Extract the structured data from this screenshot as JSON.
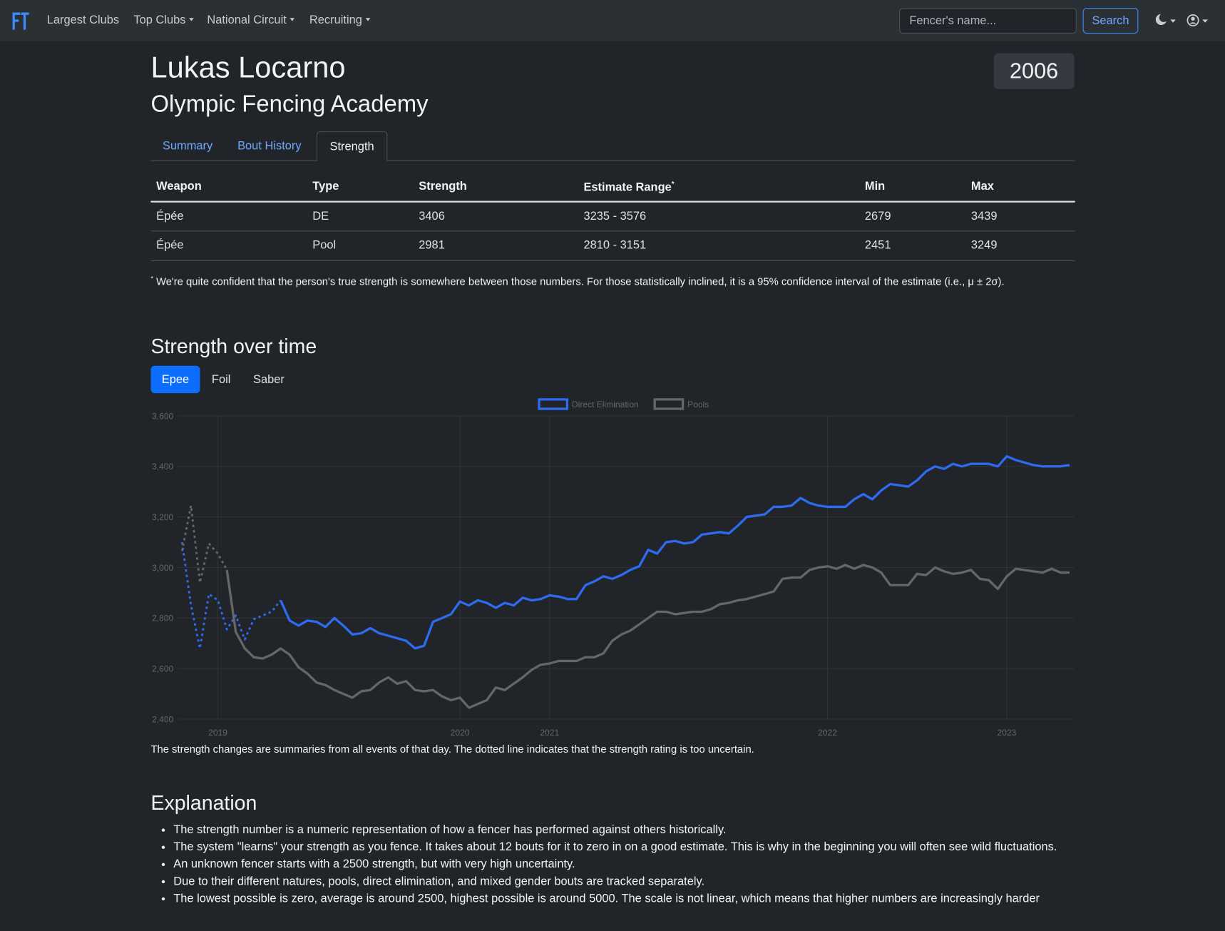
{
  "navbar": {
    "links": [
      "Largest Clubs",
      "Top Clubs",
      "National Circuit",
      "Recruiting"
    ],
    "search_placeholder": "Fencer's name...",
    "search_button": "Search"
  },
  "header": {
    "name": "Lukas Locarno",
    "club": "Olympic Fencing Academy",
    "year": 2006
  },
  "tabs": [
    "Summary",
    "Bout History",
    "Strength"
  ],
  "table": {
    "columns": [
      "Weapon",
      "Type",
      "Strength",
      "Estimate Range",
      "Min",
      "Max"
    ],
    "footnote_marker": "*",
    "rows": [
      [
        "Épée",
        "DE",
        3406,
        "3235 - 3576",
        2679,
        3439
      ],
      [
        "Épée",
        "Pool",
        2981,
        "2810 - 3151",
        2451,
        3249
      ]
    ],
    "footnote": "We're quite confident that the person's true strength is somewhere between those numbers. For those statistically inclined, it is a 95% confidence interval of the estimate (i.e., μ ± 2σ)."
  },
  "strength_section": {
    "title": "Strength over time",
    "weapons": [
      "Epee",
      "Foil",
      "Saber"
    ],
    "caption": "The strength changes are summaries from all events of that day. The dotted line indicates that the strength rating is too uncertain."
  },
  "chart_data": {
    "type": "line",
    "legend": "top",
    "grid": true,
    "categories": [
      null,
      null,
      null,
      null,
      "2019",
      null,
      null,
      null,
      null,
      null,
      null,
      null,
      null,
      null,
      null,
      null,
      null,
      null,
      null,
      null,
      null,
      null,
      null,
      null,
      null,
      null,
      null,
      null,
      null,
      null,
      null,
      "2020",
      null,
      null,
      null,
      null,
      null,
      null,
      null,
      null,
      null,
      "2021",
      null,
      null,
      null,
      null,
      null,
      null,
      null,
      null,
      null,
      null,
      null,
      null,
      null,
      null,
      null,
      null,
      null,
      null,
      null,
      null,
      null,
      null,
      null,
      null,
      null,
      null,
      null,
      null,
      null,
      null,
      "2022",
      null,
      null,
      null,
      null,
      null,
      null,
      null,
      null,
      null,
      null,
      null,
      null,
      null,
      null,
      null,
      null,
      null,
      null,
      null,
      "2023",
      null,
      null,
      null,
      null,
      null,
      null,
      null
    ],
    "ylim": [
      2400,
      3600
    ],
    "yticks": [
      {
        "value": 2400,
        "label": "2,400"
      },
      {
        "value": 2600,
        "label": "2,600"
      },
      {
        "value": 2800,
        "label": "2,800"
      },
      {
        "value": 3000,
        "label": "3,000"
      },
      {
        "value": 3200,
        "label": "3,200"
      },
      {
        "value": 3400,
        "label": "3,400"
      },
      {
        "value": 3600,
        "label": "3,600"
      }
    ],
    "series": [
      {
        "name": "Direct Elimination",
        "color": "#2f6bf0",
        "dotted_points": 12,
        "values": [
          3100,
          2850,
          2680,
          2895,
          2870,
          2755,
          2810,
          2715,
          2795,
          2810,
          2825,
          2870,
          2790,
          2770,
          2790,
          2785,
          2765,
          2800,
          2770,
          2735,
          2740,
          2760,
          2740,
          2730,
          2720,
          2710,
          2680,
          2690,
          2785,
          2800,
          2815,
          2865,
          2850,
          2870,
          2860,
          2840,
          2860,
          2850,
          2880,
          2870,
          2875,
          2890,
          2885,
          2875,
          2875,
          2930,
          2945,
          2965,
          2955,
          2970,
          2990,
          3005,
          3070,
          3055,
          3100,
          3105,
          3095,
          3100,
          3130,
          3135,
          3140,
          3135,
          3165,
          3200,
          3205,
          3210,
          3240,
          3240,
          3245,
          3275,
          3255,
          3245,
          3240,
          3240,
          3240,
          3270,
          3290,
          3270,
          3305,
          3330,
          3325,
          3320,
          3345,
          3380,
          3400,
          3390,
          3410,
          3400,
          3410,
          3410,
          3410,
          3400,
          3440,
          3425,
          3415,
          3405,
          3400,
          3400,
          3400,
          3405
        ]
      },
      {
        "name": "Pools",
        "color": "#666666",
        "dotted_points": 6,
        "values": [
          3065,
          3245,
          2940,
          3095,
          3055,
          2990,
          2745,
          2680,
          2645,
          2640,
          2655,
          2680,
          2655,
          2605,
          2580,
          2545,
          2535,
          2515,
          2500,
          2485,
          2510,
          2515,
          2545,
          2565,
          2540,
          2550,
          2515,
          2510,
          2515,
          2490,
          2475,
          2485,
          2445,
          2460,
          2475,
          2525,
          2515,
          2540,
          2565,
          2595,
          2615,
          2620,
          2630,
          2630,
          2630,
          2645,
          2645,
          2660,
          2710,
          2735,
          2750,
          2775,
          2800,
          2825,
          2825,
          2815,
          2820,
          2825,
          2825,
          2835,
          2855,
          2860,
          2870,
          2875,
          2885,
          2895,
          2905,
          2955,
          2960,
          2960,
          2990,
          3000,
          3005,
          2995,
          3010,
          2995,
          3010,
          3000,
          2980,
          2930,
          2930,
          2930,
          2975,
          2970,
          3000,
          2985,
          2975,
          2980,
          2990,
          2955,
          2950,
          2915,
          2965,
          2995,
          2990,
          2985,
          2980,
          2995,
          2980,
          2980
        ]
      }
    ]
  },
  "explanation": {
    "title": "Explanation",
    "items": [
      "The strength number is a numeric representation of how a fencer has performed against others historically.",
      "The system \"learns\" your strength as you fence. It takes about 12 bouts for it to zero in on a good estimate. This is why in the beginning you will often see wild fluctuations.",
      "An unknown fencer starts with a 2500 strength, but with very high uncertainty.",
      "Due to their different natures, pools, direct elimination, and mixed gender bouts are tracked separately.",
      "The lowest possible is zero, average is around 2500, highest possible is around 5000. The scale is not linear, which means that higher numbers are increasingly harder"
    ]
  }
}
